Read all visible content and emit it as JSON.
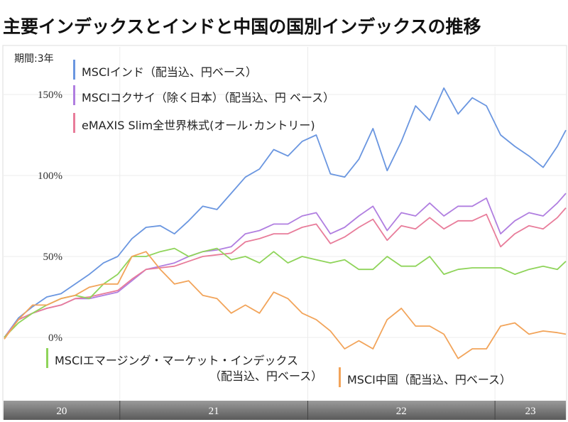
{
  "title": "主要インデックスとインドと中国の国別インデックスの推移",
  "period_label": "期間:3年",
  "chart_data": {
    "type": "line",
    "title": "主要インデックスとインドと中国の国別インデックスの推移",
    "xlabel": "",
    "ylabel": "",
    "y_unit": "%",
    "ylim": [
      -20,
      175
    ],
    "y_ticks": [
      0,
      50,
      100,
      150
    ],
    "y_tick_labels": [
      "0%",
      "50%",
      "100%",
      "150%"
    ],
    "x": [
      0,
      1,
      2,
      3,
      4,
      5,
      6,
      7,
      8,
      9,
      10,
      11,
      12,
      13,
      14,
      15,
      16,
      17,
      18,
      19,
      20,
      21,
      22,
      23,
      24,
      25,
      26,
      27,
      28,
      29,
      30,
      31,
      32,
      33,
      34,
      35,
      36,
      37,
      38,
      39,
      39.6
    ],
    "xlim": [
      0,
      39.6
    ],
    "x_year_starts": [
      8.15,
      21.4,
      34.6
    ],
    "x_tick_labels": [
      "20",
      "21",
      "22",
      "23"
    ],
    "grid": true,
    "series": [
      {
        "name": "MSCIインド（配当込、円ベース）",
        "color": "#6a96e0",
        "values": [
          0,
          12,
          19,
          25,
          27,
          33,
          39,
          46,
          50,
          61,
          68,
          69,
          64,
          72,
          81,
          79,
          89,
          99,
          104,
          116,
          112,
          121,
          125,
          101,
          99,
          110,
          129,
          103,
          121,
          143,
          134,
          154,
          138,
          148,
          143,
          125,
          118,
          112,
          105,
          118,
          128
        ]
      },
      {
        "name": "MSCIコクサイ（除く日本）（配当込、円 ベース）",
        "color": "#b07ee0",
        "values": [
          0,
          11,
          15,
          18,
          20,
          24,
          24,
          26,
          28,
          35,
          42,
          44,
          46,
          50,
          53,
          54,
          56,
          64,
          66,
          70,
          70,
          75,
          77,
          64,
          68,
          75,
          81,
          66,
          77,
          75,
          83,
          75,
          81,
          81,
          86,
          64,
          72,
          77,
          75,
          83,
          89
        ]
      },
      {
        "name": "eMAXIS Slim全世界株式(オール･カントリー)",
        "color": "#e87c9a",
        "values": [
          0,
          11,
          15,
          18,
          20,
          24,
          25,
          27,
          29,
          36,
          42,
          43,
          44,
          47,
          50,
          51,
          52,
          59,
          61,
          64,
          64,
          68,
          70,
          58,
          62,
          68,
          73,
          60,
          69,
          67,
          74,
          67,
          72,
          72,
          76,
          56,
          64,
          69,
          67,
          74,
          80
        ]
      },
      {
        "name": "MSCIエマージング・マーケット・インデックス（配当込、円ベース）",
        "color": "#8fd45a",
        "values": [
          0,
          9,
          15,
          20,
          24,
          26,
          24,
          33,
          39,
          50,
          50,
          53,
          55,
          50,
          53,
          55,
          48,
          50,
          46,
          53,
          46,
          50,
          48,
          46,
          48,
          42,
          42,
          50,
          44,
          44,
          50,
          39,
          42,
          43,
          43,
          43,
          39,
          42,
          44,
          42,
          47
        ]
      },
      {
        "name": "MSCI中国（配当込、円ベース）",
        "color": "#f2a45a",
        "values": [
          -1,
          11,
          20,
          20,
          24,
          26,
          31,
          33,
          33,
          50,
          53,
          42,
          33,
          35,
          26,
          24,
          15,
          20,
          15,
          28,
          24,
          15,
          11,
          4,
          -7,
          -2,
          -7,
          11,
          18,
          7,
          7,
          2,
          -13,
          -7,
          -7,
          7,
          9,
          2,
          4,
          3,
          2
        ]
      }
    ],
    "legend": [
      {
        "line1": "MSCIインド（配当込、円ベース）"
      },
      {
        "line1": "MSCIコクサイ（除く日本）（配当込、円 ベース）"
      },
      {
        "line1": "eMAXIS Slim全世界株式(オール･カントリー)"
      },
      {
        "line1": "MSCIエマージング・マーケット・インデックス",
        "line2": "（配当込、円ベース）"
      },
      {
        "line1": "MSCI中国（配当込、円ベース）"
      }
    ]
  }
}
